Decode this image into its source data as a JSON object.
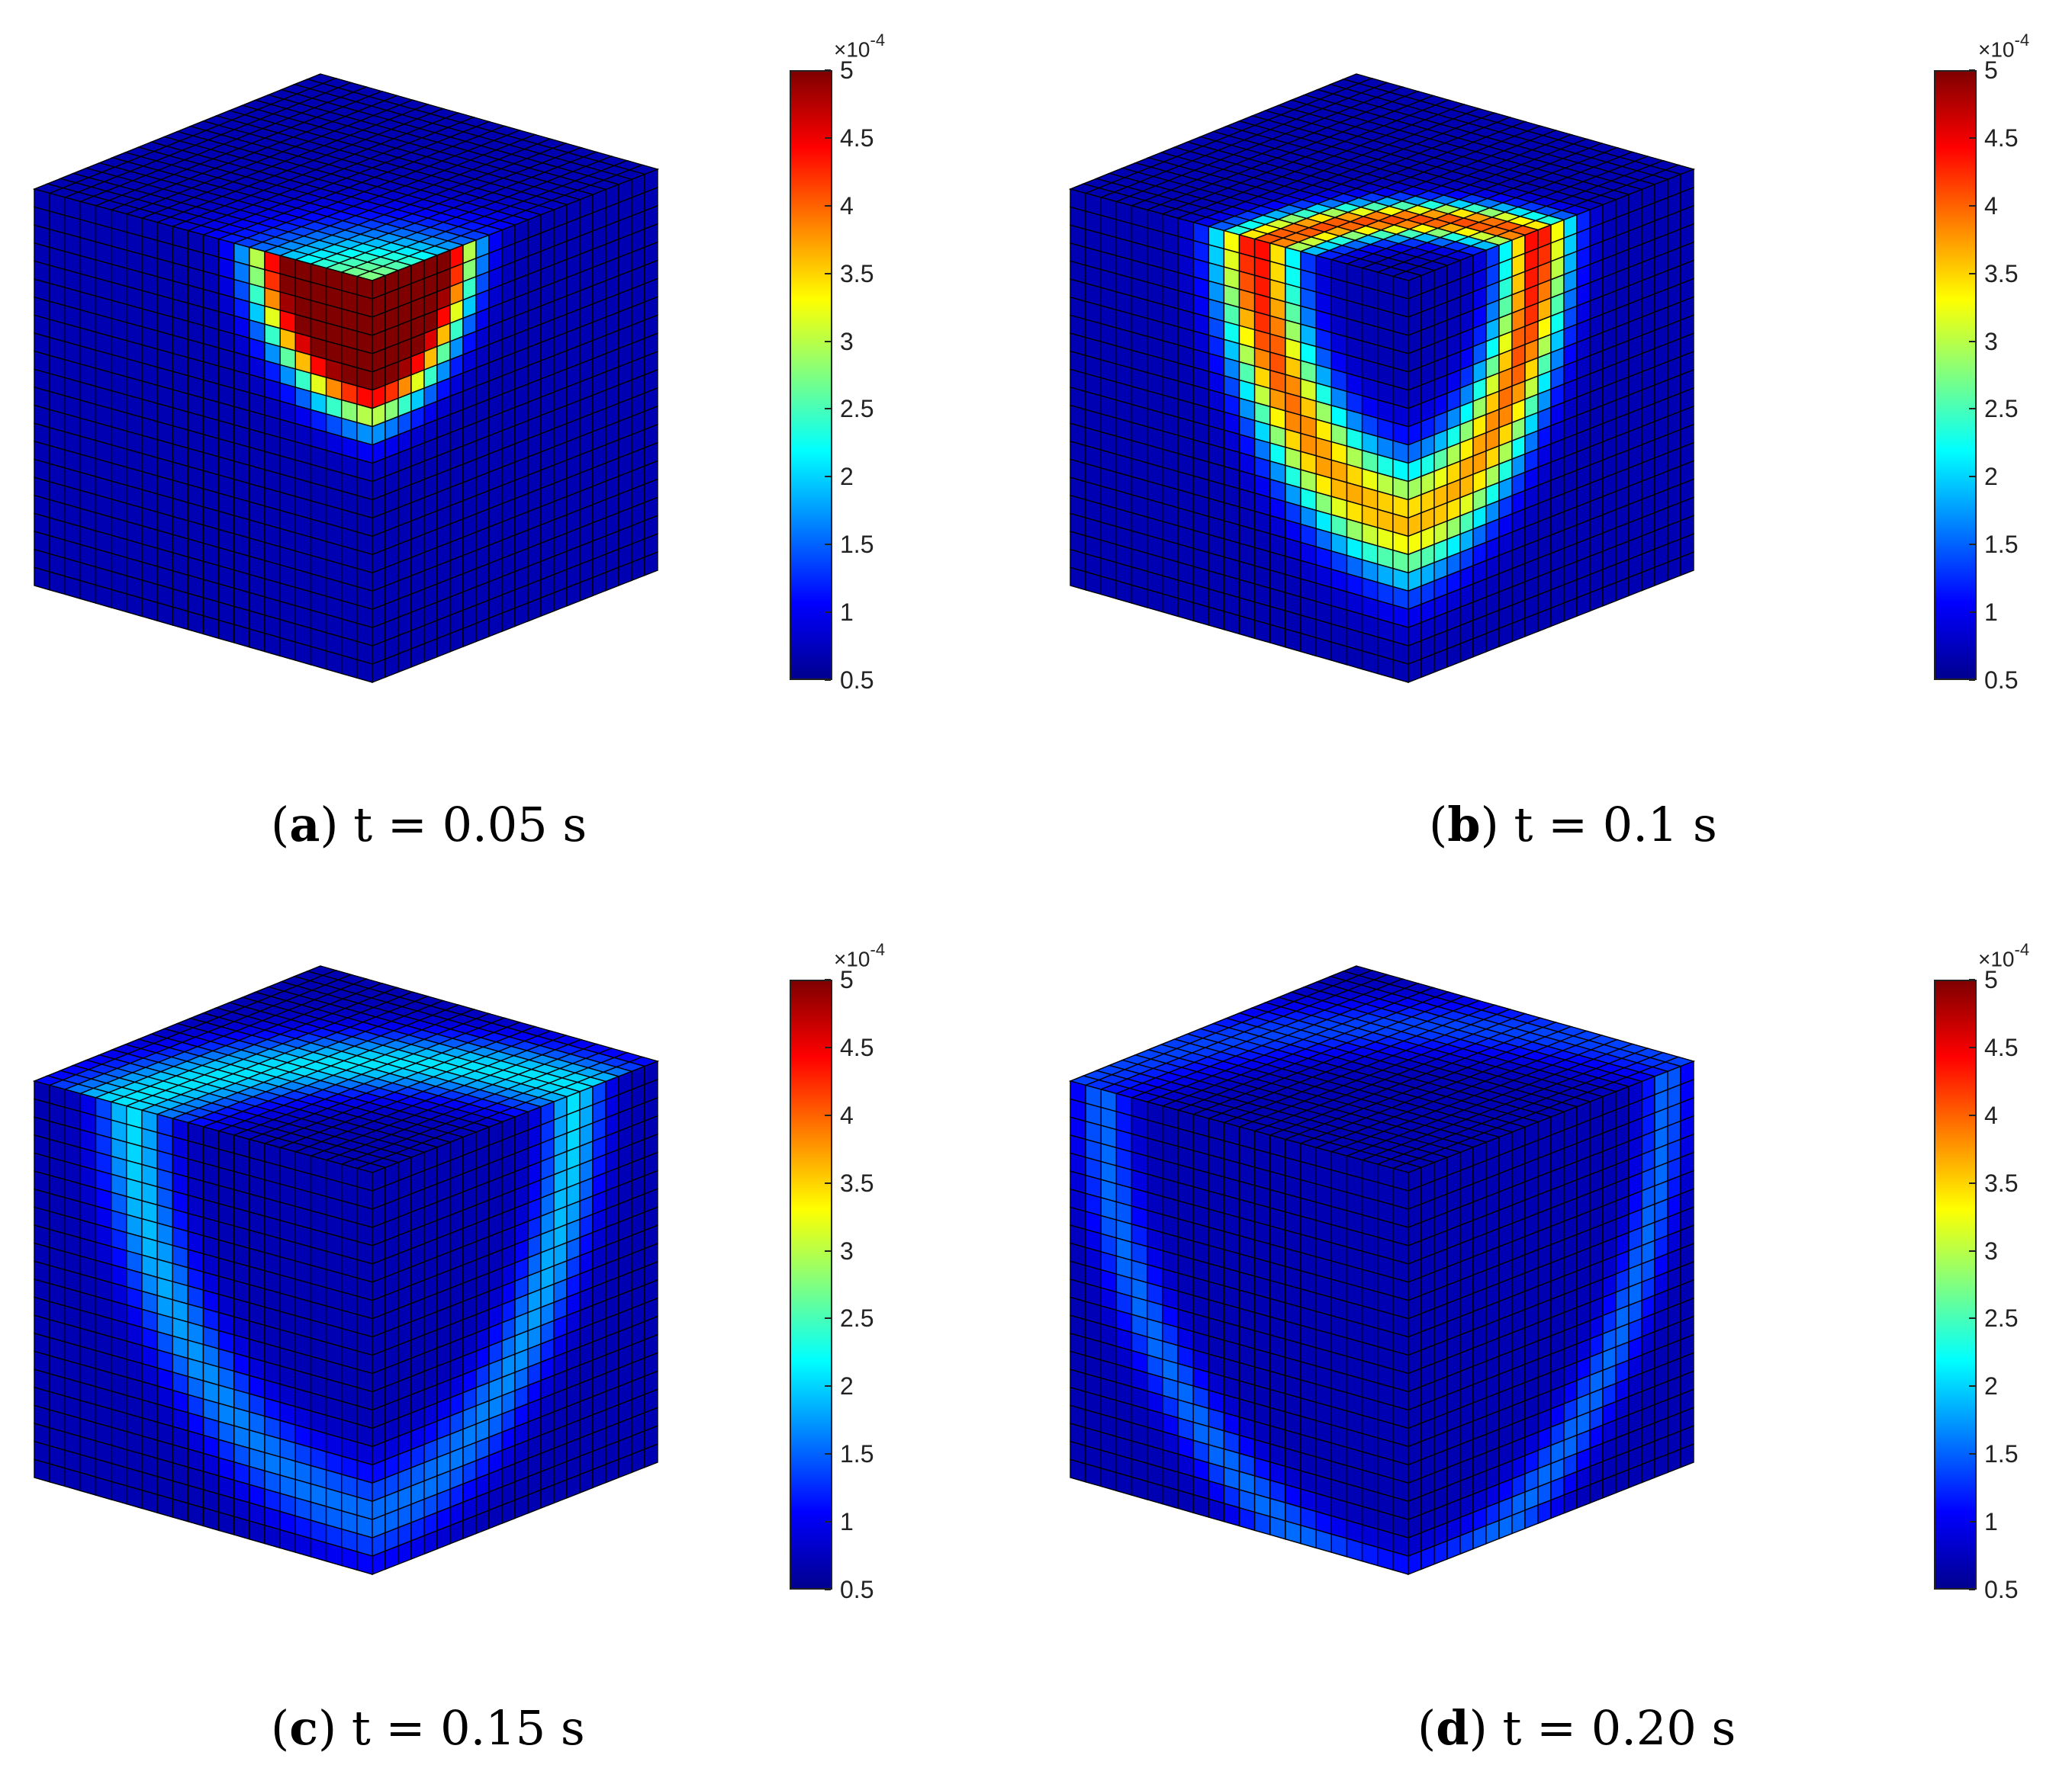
{
  "colorbar": {
    "multiplier_base": "×10",
    "multiplier_exp": "-4",
    "ticks": [
      "5",
      "4.5",
      "4",
      "3.5",
      "3",
      "2.5",
      "2",
      "1.5",
      "1",
      "0.5"
    ],
    "range": [
      0.5,
      5
    ],
    "colormap": "jet"
  },
  "panels": [
    {
      "id": "a",
      "letter": "a",
      "time": "t = 0.05 s",
      "pattern": "blob"
    },
    {
      "id": "b",
      "letter": "b",
      "time": "t = 0.1 s",
      "pattern": "ring-strong"
    },
    {
      "id": "c",
      "letter": "c",
      "time": "t = 0.15 s",
      "pattern": "ring-medium"
    },
    {
      "id": "d",
      "letter": "d",
      "time": "t = 0.20 s",
      "pattern": "ring-weak"
    }
  ],
  "colors": {
    "background_blue": "#0d2fc8",
    "grid_line": "#000000"
  }
}
